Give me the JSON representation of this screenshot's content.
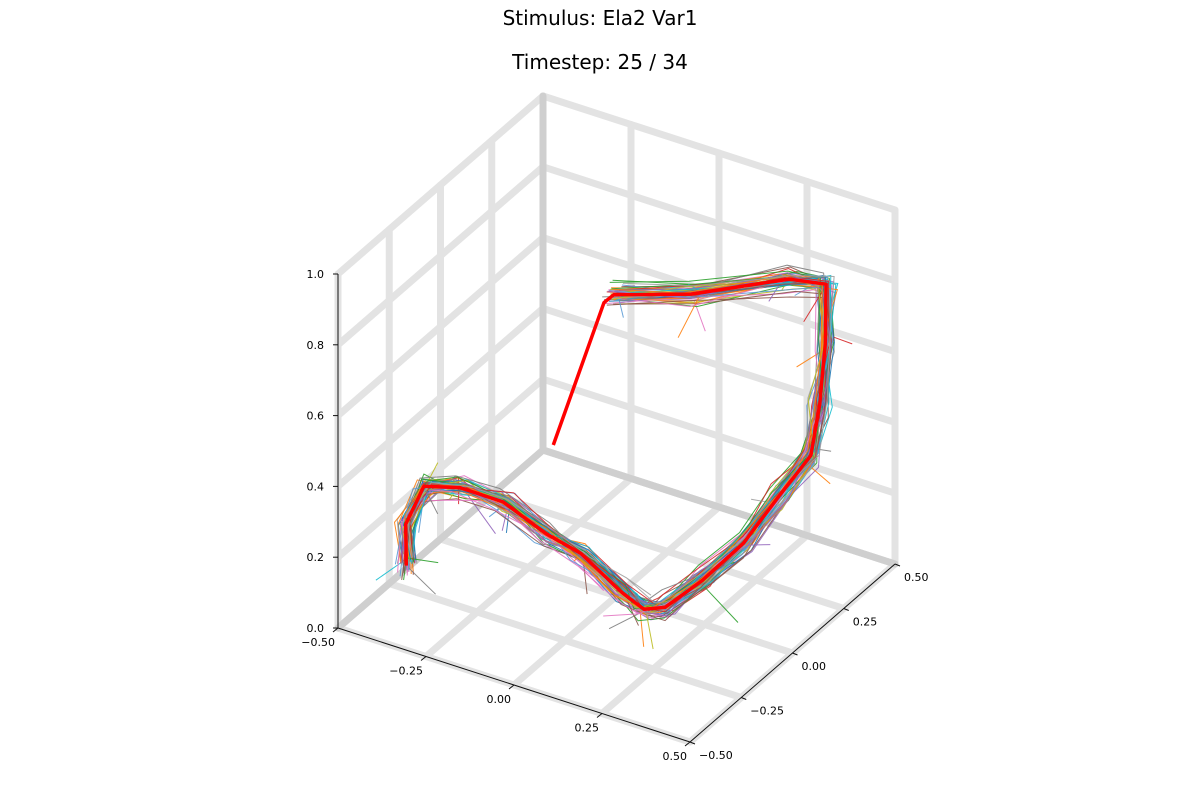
{
  "title": "Stimulus: Ela2 Var1",
  "subtitle": "Timestep: 25 / 34",
  "chart_data": {
    "type": "line3d",
    "title": "Stimulus: Ela2 Var1",
    "subtitle": "Timestep: 25 / 34",
    "xlim": [
      -0.5,
      0.5
    ],
    "ylim": [
      -0.5,
      0.5
    ],
    "zlim": [
      0.0,
      1.0
    ],
    "x_ticks": [
      "−0.50",
      "−0.25",
      "0.00",
      "0.25",
      "0.50"
    ],
    "y_ticks": [
      "−0.50",
      "−0.25",
      "0.00",
      "0.25",
      "0.50"
    ],
    "z_ticks": [
      "0.0",
      "0.2",
      "0.4",
      "0.6",
      "0.8",
      "1.0"
    ],
    "grid": true,
    "legend": "none",
    "highlight_color": "#ff0000",
    "palette": [
      "#1f77b4",
      "#5b9bd5",
      "#e377c2",
      "#2ca02c",
      "#bcbd22",
      "#17becf",
      "#8c564b",
      "#d62728",
      "#7f7f7f",
      "#9467bd",
      "#ff7f0e",
      "#a0a0a0"
    ],
    "series_count": 60,
    "highlight_series": {
      "name": "",
      "points": [
        [
          -0.44,
          -0.27,
          0.08
        ],
        [
          -0.43,
          -0.29,
          0.21
        ],
        [
          -0.39,
          -0.27,
          0.32
        ],
        [
          -0.27,
          -0.3,
          0.37
        ],
        [
          -0.13,
          -0.33,
          0.39
        ],
        [
          0.01,
          -0.36,
          0.36
        ],
        [
          0.12,
          -0.38,
          0.35
        ],
        [
          0.25,
          -0.4,
          0.29
        ],
        [
          0.3,
          -0.38,
          0.25
        ],
        [
          0.33,
          -0.33,
          0.24
        ],
        [
          0.36,
          -0.2,
          0.26
        ],
        [
          0.39,
          -0.05,
          0.3
        ],
        [
          0.41,
          0.09,
          0.37
        ],
        [
          0.43,
          0.21,
          0.43
        ],
        [
          0.42,
          0.27,
          0.54
        ],
        [
          0.43,
          0.28,
          0.71
        ],
        [
          0.45,
          0.25,
          0.9
        ],
        [
          0.42,
          0.12,
          0.97
        ],
        [
          0.27,
          -0.1,
          0.99
        ],
        [
          0.12,
          -0.22,
          1.0
        ],
        [
          0.11,
          -0.25,
          0.99
        ],
        [
          0.1,
          -0.48,
          0.7
        ]
      ]
    }
  }
}
